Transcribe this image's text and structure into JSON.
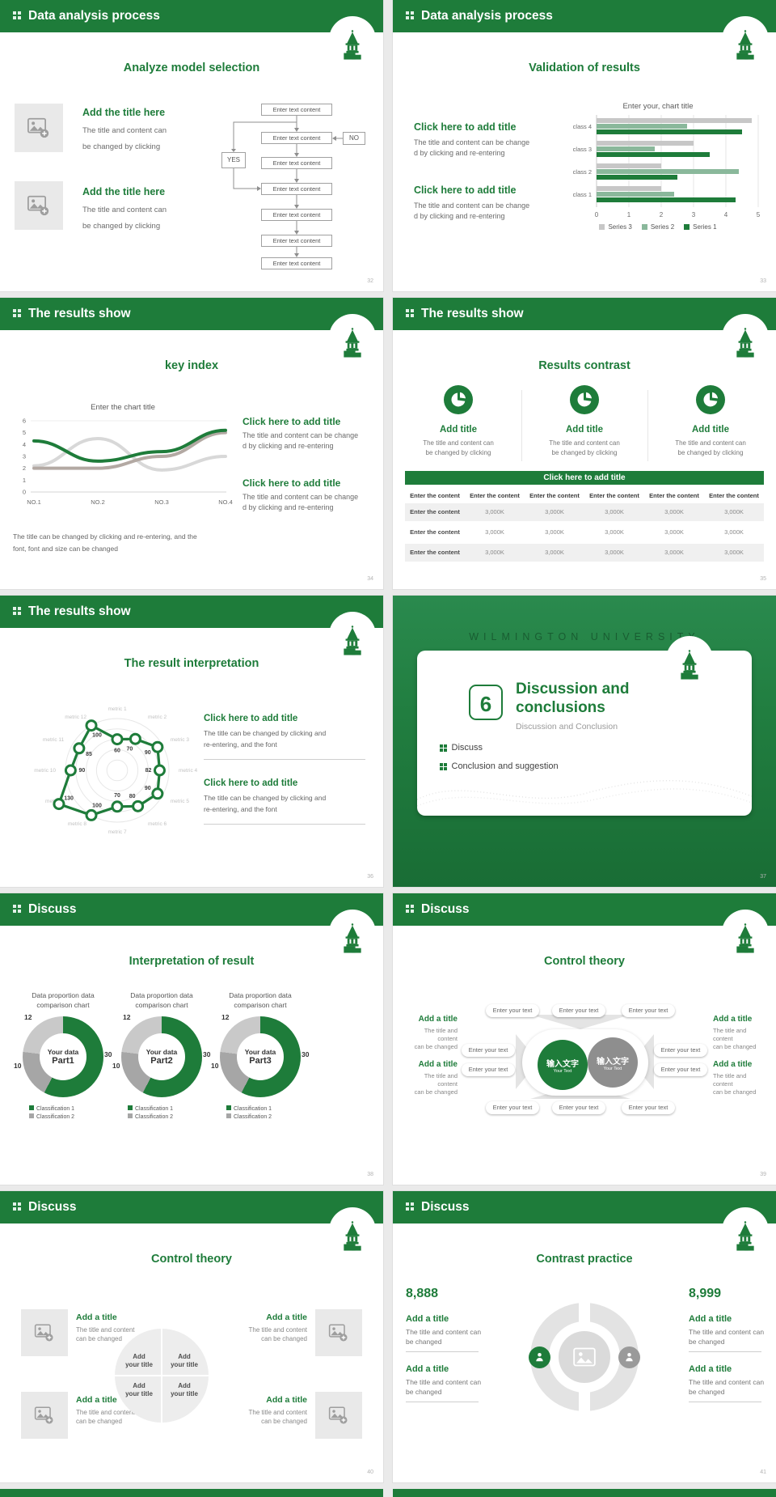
{
  "colors": {
    "primary_green": "#1e7c3a",
    "sage_green": "#8ab89b",
    "light_gray": "#c7c7c7",
    "mid_gray": "#8e8e8e"
  },
  "slides": [
    {
      "header": "Data analysis process",
      "page": "32",
      "title": "Analyze model selection",
      "item_title": "Add the title here",
      "body_l1": "The title and content can",
      "body_l2": "be changed by clicking",
      "flow_label": "Enter text content",
      "yes_label": "YES",
      "no_label": "NO"
    },
    {
      "header": "Data analysis process",
      "page": "33",
      "title": "Validation of results",
      "item_title": "Click here to add title",
      "body_l1": "The title and content can be change",
      "body_l2": "d by clicking and re-entering"
    },
    {
      "header": "The results show",
      "page": "34",
      "title": "key index",
      "item_title": "Click here to add title",
      "body_l1": "The title and content can be change",
      "body_l2": "d by clicking and re-entering",
      "caption_l1": "The title can be changed by clicking and re-entering, and the",
      "caption_l2": "font, font and size can be changed"
    },
    {
      "header": "The results show",
      "page": "35",
      "title": "Results contrast",
      "col_title": "Add title",
      "col_body_l1": "The title and content can",
      "col_body_l2": "be changed by clicking",
      "banner": "Click here to add title",
      "table_header": "Enter the content",
      "row_label": "Enter the content",
      "cell_value": "3,000K"
    },
    {
      "header": "The results show",
      "page": "36",
      "title": "The result interpretation",
      "item_title": "Click here to add  title",
      "body_l1": "The title can be changed by clicking and",
      "body_l2": "re-entering, and the font"
    },
    {
      "watermark": "WILMINGTON UNIVERSITY",
      "page": "37",
      "section_number": "6",
      "title_l1": "Discussion and",
      "title_l2": "conclusions",
      "subtitle": "Discussion and Conclusion",
      "bullet_1": "Discuss",
      "bullet_2": "Conclusion and suggestion"
    },
    {
      "header": "Discuss",
      "page": "38",
      "title": "Interpretation of result",
      "caption_l1": "Data proportion data",
      "caption_l2": "comparison chart",
      "centers": [
        {
          "l1": "Your data",
          "l2": "Part1"
        },
        {
          "l1": "Your data",
          "l2": "Part2"
        },
        {
          "l1": "Your data",
          "l2": "Part3"
        }
      ],
      "legend_1": "Classification 1",
      "legend_2": "Classification 2"
    },
    {
      "header": "Discuss",
      "page": "39",
      "title": "Control theory",
      "pill_label": "Enter your text",
      "side_title": "Add a title",
      "side_body_l1": "The title and content",
      "side_body_l2": "can be changed",
      "circle_cn": "输入文字",
      "circle_en": "Your Text"
    },
    {
      "header": "Discuss",
      "page": "40",
      "title": "Control theory",
      "item_title": "Add a title",
      "item_body_l1": "The title and content",
      "item_body_l2": "can be changed",
      "quad_l1": "Add",
      "quad_l2": "your title"
    },
    {
      "header": "Discuss",
      "page": "41",
      "title": "Contrast practice",
      "number_left": "8,888",
      "number_right": "8,999",
      "item_title": "Add a title",
      "item_body_l1": "The title and content can",
      "item_body_l2": "be changed"
    }
  ],
  "chart_data": [
    {
      "type": "bar",
      "orientation": "horizontal",
      "title": "Enter your, chart title",
      "categories": [
        "class 4",
        "class 3",
        "class 2",
        "class 1"
      ],
      "series": [
        {
          "name": "Series 3",
          "color": "#c7c7c7",
          "values": [
            4.8,
            3.0,
            2.0,
            2.0
          ]
        },
        {
          "name": "Series 2",
          "color": "#8ab89b",
          "values": [
            2.8,
            1.8,
            4.4,
            2.4
          ]
        },
        {
          "name": "Series 1",
          "color": "#1e7c3a",
          "values": [
            4.5,
            3.5,
            2.5,
            4.3
          ]
        }
      ],
      "xlim": [
        0,
        5
      ],
      "xticks": [
        0,
        1,
        2,
        3,
        4,
        5
      ],
      "legend_position": "bottom"
    },
    {
      "type": "line",
      "title": "Enter the chart title",
      "categories": [
        "NO.1",
        "NO.2",
        "NO.3",
        "NO.4"
      ],
      "ylim": [
        0,
        6
      ],
      "yticks": [
        0,
        1,
        2,
        3,
        4,
        5,
        6
      ],
      "series": [
        {
          "name": "green",
          "color": "#1e7c3a",
          "values": [
            4.3,
            2.6,
            3.4,
            5.2
          ]
        },
        {
          "name": "gray",
          "color": "#b3a9a3",
          "values": [
            2.0,
            2.0,
            3.0,
            5.0
          ]
        },
        {
          "name": "light-gray",
          "color": "#d8d8d8",
          "values": [
            2.2,
            4.5,
            1.85,
            3.0
          ]
        }
      ]
    },
    {
      "type": "radar",
      "labels": [
        "metric 1",
        "metric 2",
        "metric 3",
        "metric 4",
        "metric 5",
        "metric 6",
        "metric 7",
        "metric 8",
        "metric 9",
        "metric 10",
        "metric 11",
        "metric 12"
      ],
      "values": [
        60,
        70,
        90,
        82,
        90,
        80,
        70,
        100,
        130,
        90,
        85,
        100
      ],
      "ring_max": 100,
      "rings": 5,
      "color": "#1e7c3a"
    },
    {
      "type": "pie",
      "subtype": "donut",
      "values": [
        30,
        10,
        12
      ],
      "colors": [
        "#1e7c3a",
        "#a6a6a6",
        "#c9c9c9"
      ],
      "segment_labels": [
        "30",
        "10",
        "12"
      ],
      "legend": [
        "Classification 1",
        "Classification 2"
      ]
    }
  ]
}
